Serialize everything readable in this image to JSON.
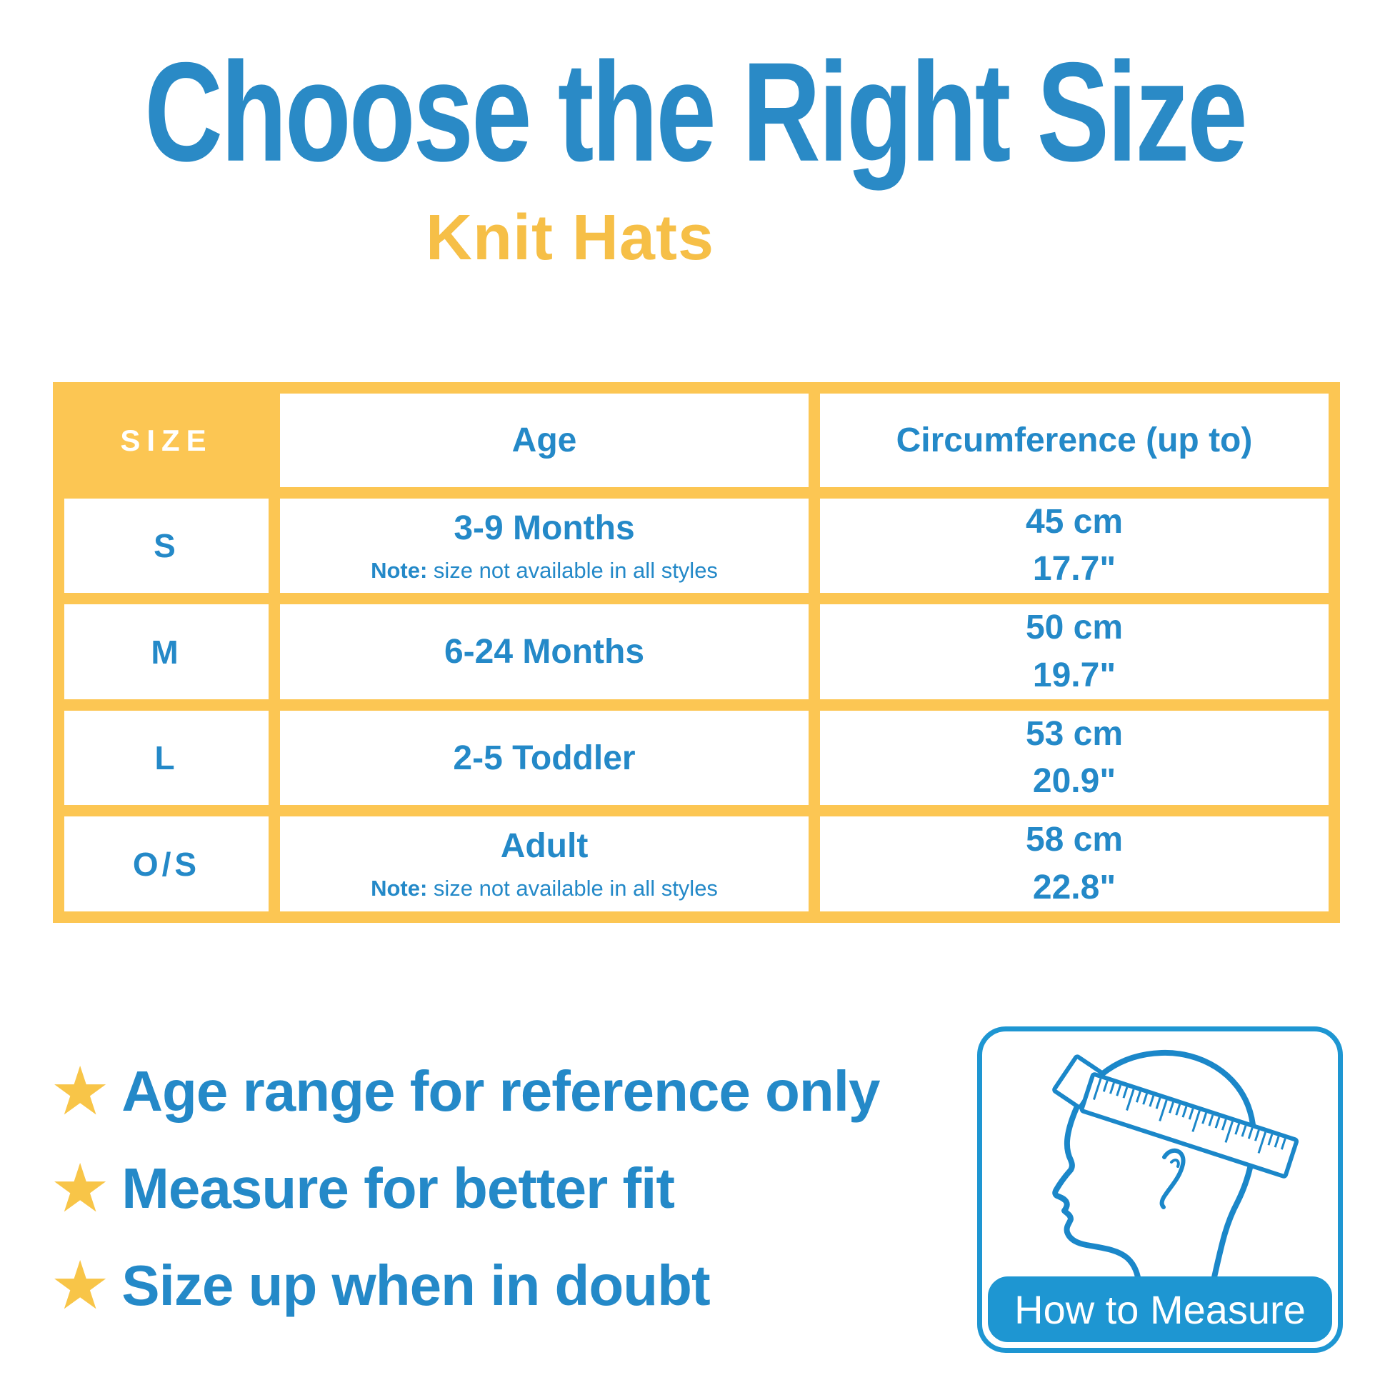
{
  "title": "Choose the Right Size",
  "subtitle": "Knit Hats",
  "table": {
    "headers": {
      "size": "SIZE",
      "age": "Age",
      "circumference": "Circumference (up to)"
    },
    "rows": [
      {
        "size": "S",
        "age": "3-9 Months",
        "note_label": "Note:",
        "note_text": " size not available in all styles",
        "circ_cm": "45 cm",
        "circ_in": "17.7\""
      },
      {
        "size": "M",
        "age": "6-24 Months",
        "circ_cm": "50 cm",
        "circ_in": "19.7\""
      },
      {
        "size": "L",
        "age": "2-5 Toddler",
        "circ_cm": "53 cm",
        "circ_in": "20.9\""
      },
      {
        "size": "O/S",
        "age": "Adult",
        "note_label": "Note:",
        "note_text": " size not available in all styles",
        "circ_cm": "58 cm",
        "circ_in": "22.8\""
      }
    ]
  },
  "tips": [
    {
      "text": "Age range for reference only"
    },
    {
      "text": "Measure for better fit"
    },
    {
      "text": "Size up when in doubt"
    }
  ],
  "measure_box": {
    "label": "How to Measure"
  },
  "icons": {
    "star": "★"
  },
  "colors": {
    "text_blue": "#2489C8",
    "table_yellow": "#FCC653",
    "subtitle_gold": "#F6BF47",
    "star_gold": "#F8C548",
    "banner_blue": "#1E96D2",
    "size_header_text": "#FFFFFF"
  }
}
